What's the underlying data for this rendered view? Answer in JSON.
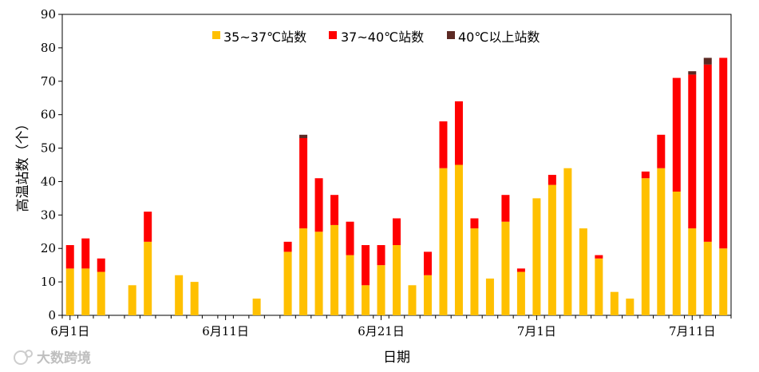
{
  "chart_data": {
    "type": "bar",
    "stacked": true,
    "ylabel": "高温站数（个）",
    "xlabel": "日期",
    "ylim": [
      0,
      90
    ],
    "yticks": [
      0,
      10,
      20,
      30,
      40,
      50,
      60,
      70,
      80,
      90
    ],
    "x_tick_labels": [
      {
        "day_index": 0,
        "label": "6月1日"
      },
      {
        "day_index": 10,
        "label": "6月11日"
      },
      {
        "day_index": 20,
        "label": "6月21日"
      },
      {
        "day_index": 30,
        "label": "7月1日"
      },
      {
        "day_index": 40,
        "label": "7月11日"
      }
    ],
    "legend_position": "top-center",
    "categories": [
      "6月1日",
      "6月2日",
      "6月3日",
      "6月4日",
      "6月5日",
      "6月6日",
      "6月7日",
      "6月8日",
      "6月9日",
      "6月10日",
      "6月11日",
      "6月12日",
      "6月13日",
      "6月14日",
      "6月15日",
      "6月16日",
      "6月17日",
      "6月18日",
      "6月19日",
      "6月20日",
      "6月21日",
      "6月22日",
      "6月23日",
      "6月24日",
      "6月25日",
      "6月26日",
      "6月27日",
      "6月28日",
      "6月29日",
      "6月30日",
      "7月1日",
      "7月2日",
      "7月3日",
      "7月4日",
      "7月5日",
      "7月6日",
      "7月7日",
      "7月8日",
      "7月9日",
      "7月10日",
      "7月11日",
      "7月12日",
      "7月13日"
    ],
    "series": [
      {
        "name": "35~37℃站数",
        "color": "#ffc000",
        "values": [
          14,
          14,
          13,
          0,
          9,
          22,
          0,
          12,
          10,
          0,
          0,
          0,
          5,
          0,
          19,
          26,
          25,
          27,
          18,
          9,
          15,
          21,
          9,
          12,
          44,
          45,
          26,
          11,
          28,
          13,
          35,
          39,
          44,
          26,
          17,
          7,
          5,
          41,
          44,
          37,
          26,
          22,
          20
        ]
      },
      {
        "name": "37~40℃站数",
        "color": "#ff0000",
        "values": [
          7,
          9,
          4,
          0,
          0,
          9,
          0,
          0,
          0,
          0,
          0,
          0,
          0,
          0,
          3,
          27,
          16,
          9,
          10,
          12,
          6,
          8,
          0,
          7,
          14,
          19,
          3,
          0,
          8,
          1,
          0,
          3,
          0,
          0,
          1,
          0,
          0,
          2,
          10,
          34,
          46,
          53,
          57
        ]
      },
      {
        "name": "40℃以上站数",
        "color": "#5c2a24",
        "values": [
          0,
          0,
          0,
          0,
          0,
          0,
          0,
          0,
          0,
          0,
          0,
          0,
          0,
          0,
          0,
          1,
          0,
          0,
          0,
          0,
          0,
          0,
          0,
          0,
          0,
          0,
          0,
          0,
          0,
          0,
          0,
          0,
          0,
          0,
          0,
          0,
          0,
          0,
          0,
          0,
          1,
          2,
          0
        ]
      }
    ]
  },
  "watermark": {
    "text": "大数跨境"
  }
}
